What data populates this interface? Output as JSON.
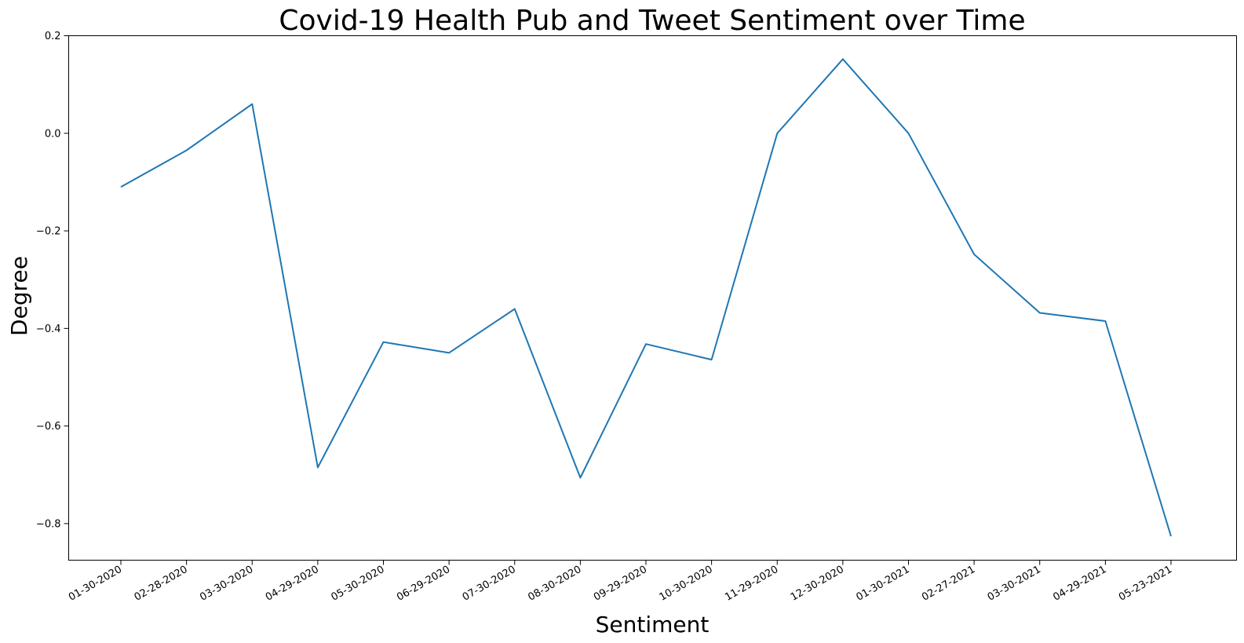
{
  "chart_data": {
    "type": "line",
    "title": "Covid-19 Health Pub and Tweet Sentiment over Time",
    "xlabel": "Sentiment",
    "ylabel": "Degree",
    "categories": [
      "01-30-2020",
      "02-28-2020",
      "03-30-2020",
      "04-29-2020",
      "05-30-2020",
      "06-29-2020",
      "07-30-2020",
      "08-30-2020",
      "09-29-2020",
      "10-30-2020",
      "11-29-2020",
      "12-30-2020",
      "01-30-2021",
      "02-27-2021",
      "03-30-2021",
      "04-29-2021",
      "05-23-2021"
    ],
    "series": [
      {
        "color": "#1f77b4",
        "values": [
          -0.11,
          -0.035,
          0.06,
          -0.685,
          -0.428,
          -0.45,
          -0.36,
          -0.706,
          -0.432,
          -0.464,
          0.0,
          0.152,
          0.0,
          -0.248,
          -0.368,
          -0.385,
          -0.826
        ]
      }
    ],
    "ylim": [
      -0.875,
      0.2
    ],
    "yticks": [
      0.2,
      0.0,
      -0.2,
      -0.4,
      -0.6,
      -0.8
    ],
    "ytick_labels": [
      "0.2",
      "0.0",
      "−0.2",
      "−0.4",
      "−0.6",
      "−0.8"
    ],
    "grid": false,
    "legend": "none"
  }
}
